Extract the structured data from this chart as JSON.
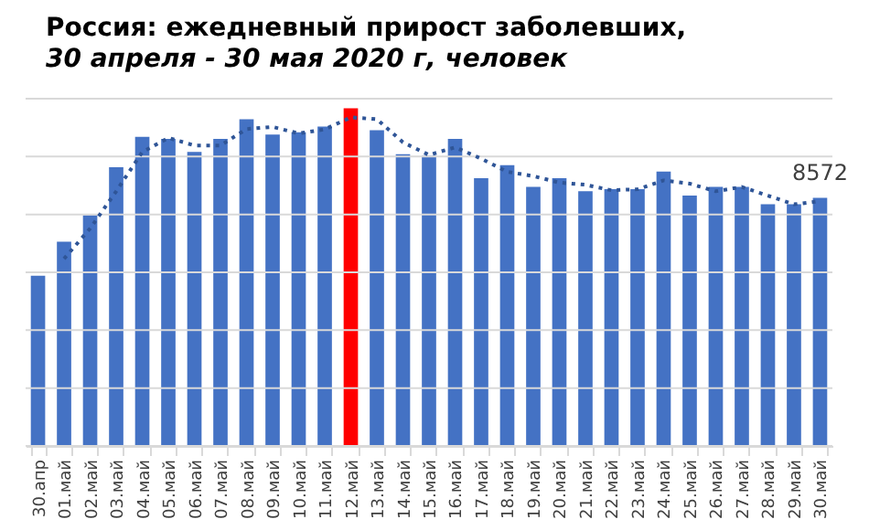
{
  "chart_data": {
    "type": "bar",
    "title": "Россия: ежедневный прирост заболевших,",
    "subtitle": "30 апреля - 30 мая 2020 г, человек",
    "categories": [
      "30.апр",
      "01.май",
      "02.май",
      "03.май",
      "04.май",
      "05.май",
      "06.май",
      "07.май",
      "08.май",
      "09.май",
      "10.май",
      "11.май",
      "12.май",
      "13.май",
      "14.май",
      "15.май",
      "16.май",
      "17.май",
      "18.май",
      "19.май",
      "20.май",
      "21.май",
      "22.май",
      "23.май",
      "24.май",
      "25.май",
      "26.май",
      "27.май",
      "28.май",
      "29.май",
      "30.май"
    ],
    "ylim": [
      0,
      12000
    ],
    "yticks": [
      {
        "value": 0,
        "label": null
      },
      {
        "value": 2000,
        "label": null
      },
      {
        "value": 4000,
        "label": null
      },
      {
        "value": 6000,
        "label": null
      },
      {
        "value": 8000,
        "label": null
      },
      {
        "value": 10000,
        "label": null
      },
      {
        "value": 12000,
        "label": null
      }
    ],
    "tick_labels": "x",
    "grid": "y",
    "series": [
      {
        "values": [
          5880,
          7060,
          7970,
          9630,
          10680,
          10610,
          10160,
          10610,
          11290,
          10760,
          10840,
          11040,
          11670,
          10910,
          10080,
          10030,
          10610,
          9250,
          9700,
          8950,
          9250,
          8800,
          8870,
          8870,
          9480,
          8650,
          8950,
          8950,
          8350,
          8350,
          8572
        ],
        "colors": [
          "#4472c4",
          "#4472c4",
          "#4472c4",
          "#4472c4",
          "#4472c4",
          "#4472c4",
          "#4472c4",
          "#4472c4",
          "#4472c4",
          "#4472c4",
          "#4472c4",
          "#4472c4",
          "#ff0000",
          "#4472c4",
          "#4472c4",
          "#4472c4",
          "#4472c4",
          "#4472c4",
          "#4472c4",
          "#4472c4",
          "#4472c4",
          "#4472c4",
          "#4472c4",
          "#4472c4",
          "#4472c4",
          "#4472c4",
          "#4472c4",
          "#4472c4",
          "#4472c4",
          "#4472c4",
          "#4472c4"
        ],
        "value_labels": [
          null,
          null,
          null,
          null,
          null,
          null,
          null,
          null,
          null,
          null,
          null,
          null,
          null,
          null,
          null,
          null,
          null,
          null,
          null,
          null,
          null,
          null,
          null,
          null,
          null,
          null,
          null,
          null,
          null,
          null,
          "8572"
        ]
      },
      {
        "type": "line",
        "color": "#2f5597",
        "line_style": "dotted",
        "values": [
          null,
          6470,
          7515,
          8800,
          10155,
          10645,
          10385,
          10385,
          10950,
          11025,
          10800,
          10940,
          11355,
          11290,
          10495,
          10055,
          10320,
          9930,
          9475,
          9325,
          9100,
          9025,
          8835,
          8870,
          9175,
          9065,
          8800,
          8950,
          8650,
          8350,
          8461
        ]
      }
    ]
  }
}
